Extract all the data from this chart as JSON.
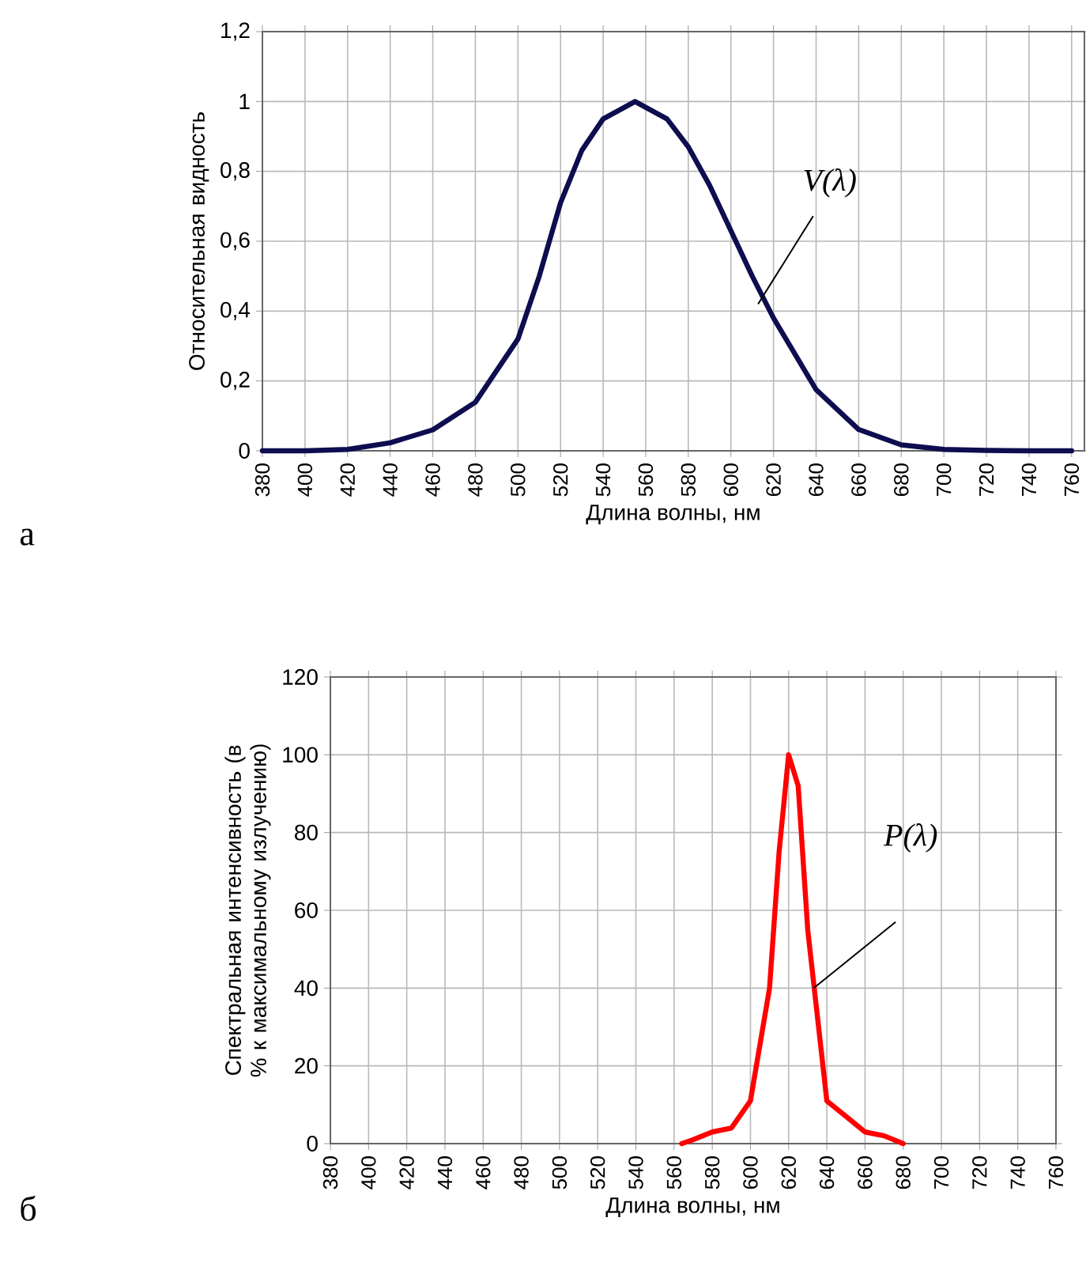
{
  "chart_data": [
    {
      "type": "line",
      "xlabel": "Длина волны, нм",
      "ylabel": "Относительная видность",
      "annotations": [
        "а"
      ],
      "series": [
        {
          "name": "V(λ)",
          "color": "#0d0d4f",
          "x": [
            380,
            400,
            420,
            440,
            460,
            480,
            500,
            510,
            520,
            530,
            540,
            555,
            570,
            580,
            590,
            600,
            610,
            620,
            640,
            660,
            680,
            700,
            720,
            740,
            760
          ],
          "values": [
            0,
            0,
            0.004,
            0.023,
            0.06,
            0.139,
            0.32,
            0.5,
            0.71,
            0.86,
            0.95,
            1.0,
            0.95,
            0.87,
            0.76,
            0.63,
            0.5,
            0.38,
            0.175,
            0.061,
            0.017,
            0.004,
            0.001,
            0,
            0
          ]
        }
      ],
      "xlim": [
        380,
        766
      ],
      "ylim": [
        0,
        1.2
      ],
      "xticks": [
        380,
        400,
        420,
        440,
        460,
        480,
        500,
        520,
        540,
        560,
        580,
        600,
        620,
        640,
        660,
        680,
        700,
        720,
        740,
        760
      ],
      "yticks": [
        0,
        {
          "value": 0.2,
          "label": "0,2"
        },
        {
          "value": 0.4,
          "label": "0,4"
        },
        {
          "value": 0.6,
          "label": "0,6"
        },
        {
          "value": 0.8,
          "label": "0,8"
        },
        1,
        {
          "value": 1.2,
          "label": "1,2"
        }
      ],
      "grid": true,
      "legend": false,
      "marker": "none",
      "line_style": "solid"
    },
    {
      "type": "line",
      "xlabel": "Длина волны, нм",
      "ylabel": "Спектральная интенсивность (в % к максимальному излучению)",
      "annotations": [
        "б"
      ],
      "series": [
        {
          "name": "P(λ)",
          "color": "#ff0000",
          "x": [
            564,
            570,
            580,
            590,
            600,
            610,
            615,
            620,
            625,
            630,
            640,
            650,
            660,
            670,
            680
          ],
          "values": [
            0,
            1,
            3,
            4,
            11,
            40,
            75,
            100,
            92,
            55,
            11,
            7,
            3,
            2,
            0
          ]
        }
      ],
      "xlim": [
        380,
        760
      ],
      "ylim": [
        0,
        120
      ],
      "xticks": [
        380,
        400,
        420,
        440,
        460,
        480,
        500,
        520,
        540,
        560,
        580,
        600,
        620,
        640,
        660,
        680,
        700,
        720,
        740,
        760
      ],
      "yticks": [
        0,
        20,
        40,
        60,
        80,
        100,
        120
      ],
      "grid": true,
      "legend": false,
      "marker": "none",
      "line_style": "solid"
    }
  ]
}
